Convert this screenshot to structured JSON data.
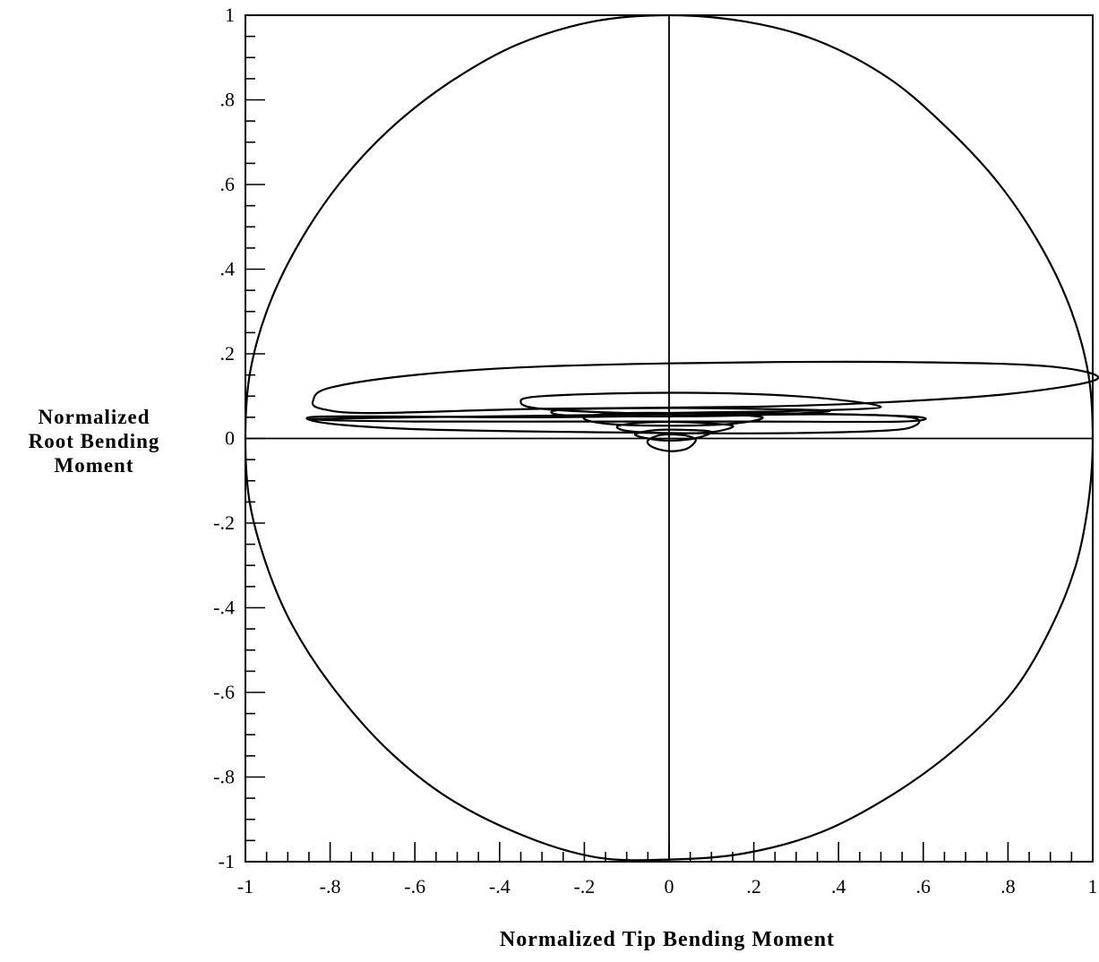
{
  "chart_data": {
    "type": "line",
    "title": "",
    "xlabel": "Normalized Tip Bending Moment",
    "ylabel_lines": [
      "Normalized",
      "Root Bending",
      "Moment"
    ],
    "xlim": [
      -1,
      1
    ],
    "ylim": [
      -1,
      1
    ],
    "x_ticks": [
      {
        "value": -1,
        "label": "-1"
      },
      {
        "value": -0.8,
        "label": "-.8"
      },
      {
        "value": -0.6,
        "label": "-.6"
      },
      {
        "value": -0.4,
        "label": "-.4"
      },
      {
        "value": -0.2,
        "label": "-.2"
      },
      {
        "value": 0,
        "label": "0"
      },
      {
        "value": 0.2,
        "label": ".2"
      },
      {
        "value": 0.4,
        "label": ".4"
      },
      {
        "value": 0.6,
        "label": ".6"
      },
      {
        "value": 0.8,
        "label": ".8"
      },
      {
        "value": 1,
        "label": "1"
      }
    ],
    "y_ticks": [
      {
        "value": 1,
        "label": "1"
      },
      {
        "value": 0.8,
        "label": ".8"
      },
      {
        "value": 0.6,
        "label": ".6"
      },
      {
        "value": 0.4,
        "label": ".4"
      },
      {
        "value": 0.2,
        "label": ".2"
      },
      {
        "value": 0,
        "label": "0"
      },
      {
        "value": -0.2,
        "label": "-.2"
      },
      {
        "value": -0.4,
        "label": "-.4"
      },
      {
        "value": -0.6,
        "label": "-.6"
      },
      {
        "value": -0.8,
        "label": "-.8"
      },
      {
        "value": -1,
        "label": "-1"
      }
    ],
    "minor_tick_step": 0.05,
    "zero_axes": true,
    "grid": false,
    "legend": "none",
    "series": [
      {
        "kind": "closed-curve",
        "points": [
          [
            0.0,
            1.0
          ],
          [
            0.18,
            0.985
          ],
          [
            0.35,
            0.94
          ],
          [
            0.52,
            0.85
          ],
          [
            0.66,
            0.73
          ],
          [
            0.78,
            0.6
          ],
          [
            0.88,
            0.45
          ],
          [
            0.95,
            0.3
          ],
          [
            0.99,
            0.15
          ],
          [
            1.0,
            0.0
          ],
          [
            0.99,
            -0.15
          ],
          [
            0.96,
            -0.3
          ],
          [
            0.9,
            -0.45
          ],
          [
            0.81,
            -0.6
          ],
          [
            0.68,
            -0.73
          ],
          [
            0.53,
            -0.84
          ],
          [
            0.36,
            -0.93
          ],
          [
            0.18,
            -0.98
          ],
          [
            0.0,
            -0.995
          ],
          [
            -0.17,
            -0.99
          ],
          [
            -0.34,
            -0.94
          ],
          [
            -0.52,
            -0.85
          ],
          [
            -0.67,
            -0.73
          ],
          [
            -0.8,
            -0.58
          ],
          [
            -0.89,
            -0.44
          ],
          [
            -0.95,
            -0.3
          ],
          [
            -0.99,
            -0.15
          ],
          [
            -1.0,
            0.0
          ],
          [
            -0.99,
            0.15
          ],
          [
            -0.95,
            0.3
          ],
          [
            -0.88,
            0.45
          ],
          [
            -0.78,
            0.6
          ],
          [
            -0.66,
            0.73
          ],
          [
            -0.52,
            0.84
          ],
          [
            -0.36,
            0.93
          ],
          [
            -0.18,
            0.985
          ]
        ]
      },
      {
        "kind": "closed-curve",
        "points": [
          [
            1.01,
            0.14
          ],
          [
            0.9,
            0.17
          ],
          [
            0.6,
            0.18
          ],
          [
            0.2,
            0.18
          ],
          [
            -0.3,
            0.17
          ],
          [
            -0.6,
            0.15
          ],
          [
            -0.8,
            0.12
          ],
          [
            -0.84,
            0.09
          ],
          [
            -0.82,
            0.07
          ],
          [
            -0.7,
            0.06
          ],
          [
            -0.3,
            0.07
          ],
          [
            0.2,
            0.075
          ],
          [
            0.5,
            0.085
          ],
          [
            0.8,
            0.105
          ]
        ]
      },
      {
        "kind": "closed-curve",
        "points": [
          [
            0.5,
            0.075
          ],
          [
            0.3,
            0.1
          ],
          [
            0.0,
            0.108
          ],
          [
            -0.3,
            0.1
          ],
          [
            -0.35,
            0.085
          ],
          [
            -0.3,
            0.07
          ],
          [
            -0.1,
            0.06
          ],
          [
            0.1,
            0.062
          ],
          [
            0.3,
            0.065
          ]
        ]
      },
      {
        "kind": "closed-curve",
        "points": [
          [
            0.57,
            0.05
          ],
          [
            0.58,
            0.03
          ],
          [
            0.5,
            0.018
          ],
          [
            0.2,
            0.012
          ],
          [
            -0.2,
            0.015
          ],
          [
            -0.6,
            0.022
          ],
          [
            -0.8,
            0.035
          ],
          [
            -0.85,
            0.05
          ],
          [
            -0.7,
            0.052
          ],
          [
            -0.3,
            0.05
          ],
          [
            0.1,
            0.055
          ],
          [
            0.4,
            0.057
          ]
        ]
      },
      {
        "kind": "closed-curve",
        "points": [
          [
            0.57,
            0.052
          ],
          [
            0.2,
            0.06
          ],
          [
            -0.2,
            0.055
          ],
          [
            -0.6,
            0.05
          ],
          [
            -0.85,
            0.045
          ],
          [
            -0.6,
            0.04
          ],
          [
            -0.2,
            0.04
          ],
          [
            0.2,
            0.04
          ],
          [
            0.55,
            0.04
          ]
        ]
      },
      {
        "kind": "closed-curve",
        "points": [
          [
            0.38,
            0.065
          ],
          [
            0.2,
            0.07
          ],
          [
            0.0,
            0.072
          ],
          [
            -0.25,
            0.068
          ],
          [
            -0.25,
            0.055
          ],
          [
            -0.05,
            0.052
          ],
          [
            0.2,
            0.055
          ]
        ]
      },
      {
        "kind": "closed-curve",
        "points": [
          [
            0.22,
            0.05
          ],
          [
            0.1,
            0.058
          ],
          [
            -0.1,
            0.06
          ],
          [
            -0.2,
            0.05
          ],
          [
            -0.15,
            0.035
          ],
          [
            0.0,
            0.03
          ],
          [
            0.15,
            0.035
          ]
        ]
      },
      {
        "kind": "closed-curve",
        "points": [
          [
            0.15,
            0.03
          ],
          [
            0.05,
            0.038
          ],
          [
            -0.05,
            0.038
          ],
          [
            -0.12,
            0.03
          ],
          [
            -0.1,
            0.018
          ],
          [
            0.0,
            0.012
          ],
          [
            0.1,
            0.015
          ]
        ]
      },
      {
        "kind": "closed-curve",
        "points": [
          [
            0.1,
            0.015
          ],
          [
            0.05,
            0.02
          ],
          [
            -0.03,
            0.02
          ],
          [
            -0.08,
            0.01
          ],
          [
            -0.05,
            0.0
          ],
          [
            0.0,
            -0.005
          ],
          [
            0.06,
            0.0
          ]
        ]
      },
      {
        "kind": "closed-curve",
        "points": [
          [
            0.06,
            0.0
          ],
          [
            0.03,
            0.008
          ],
          [
            -0.02,
            0.008
          ],
          [
            -0.05,
            -0.005
          ],
          [
            -0.04,
            -0.02
          ],
          [
            0.0,
            -0.03
          ],
          [
            0.04,
            -0.025
          ],
          [
            0.06,
            -0.01
          ]
        ]
      }
    ]
  }
}
